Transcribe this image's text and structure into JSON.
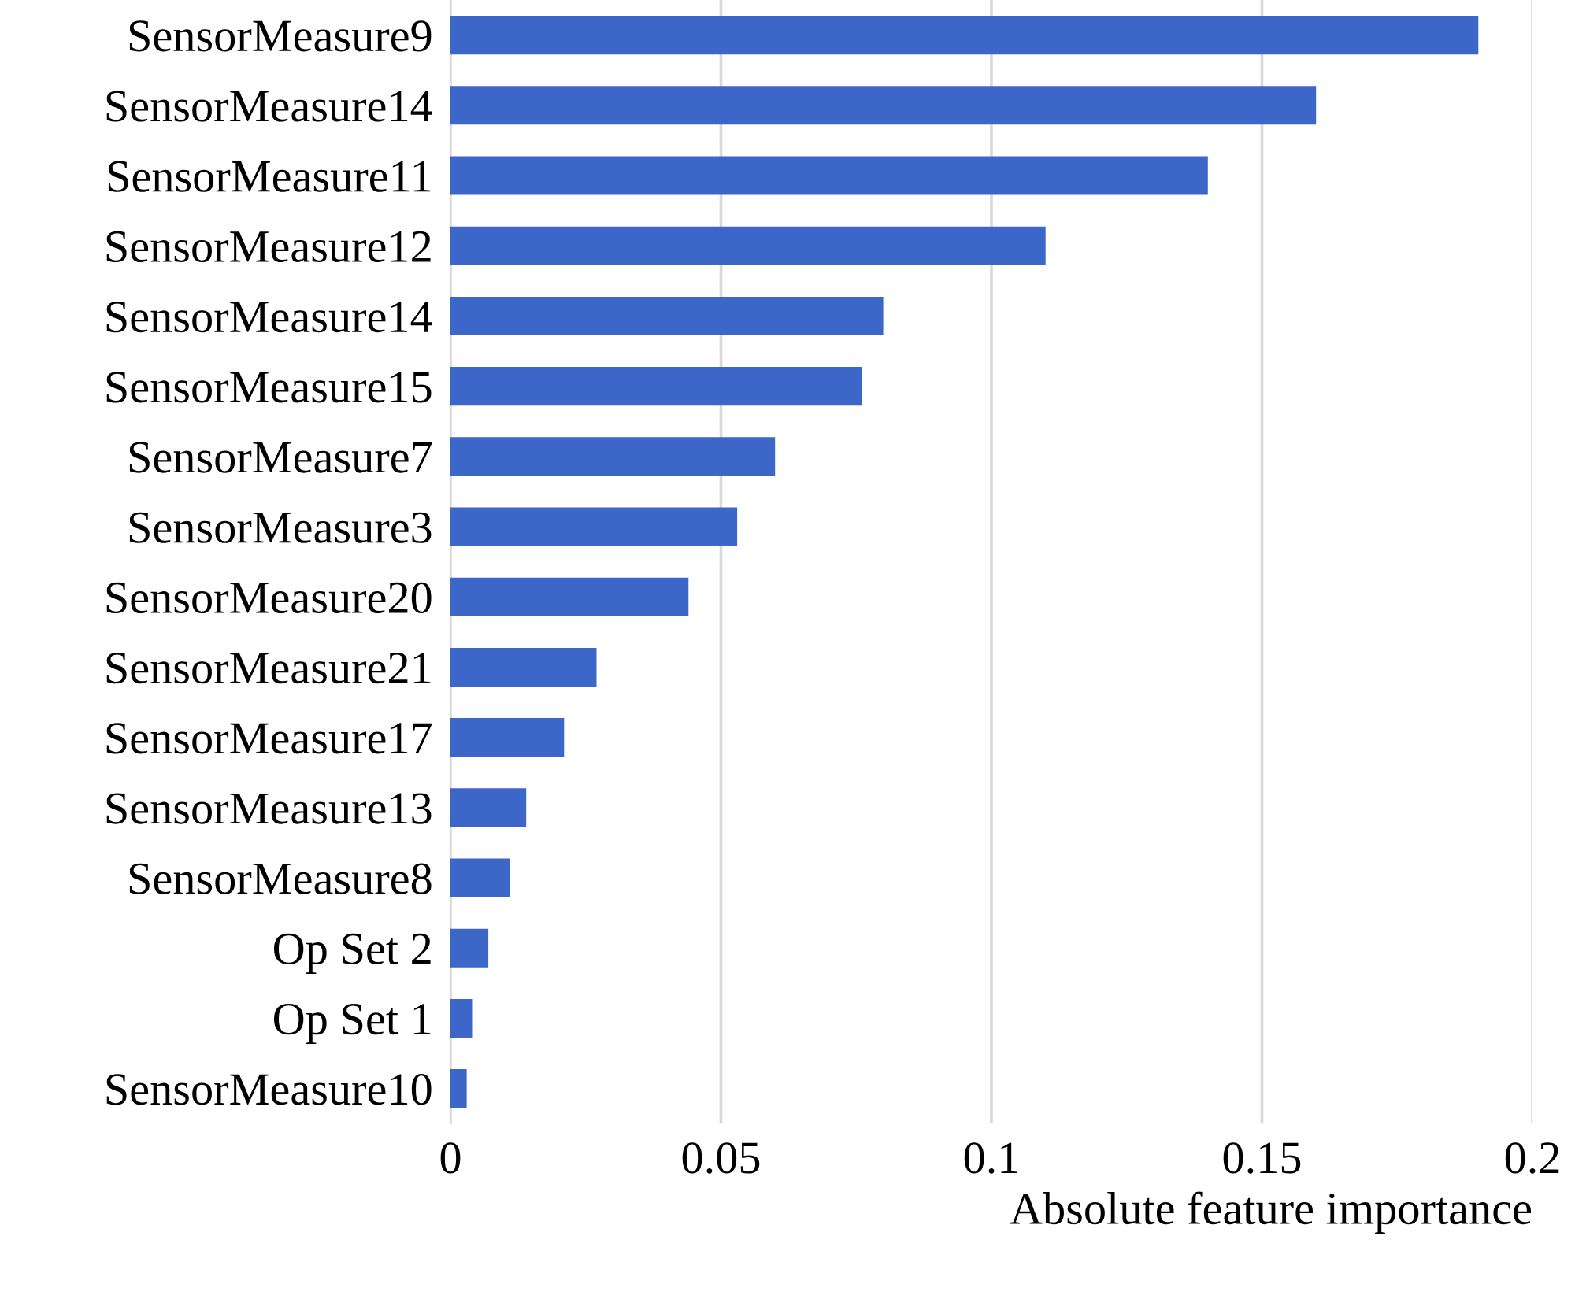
{
  "chart_data": {
    "type": "bar",
    "orientation": "horizontal",
    "xlabel": "Absolute feature importance",
    "categories": [
      "SensorMeasure9",
      "SensorMeasure14",
      "SensorMeasure11",
      "SensorMeasure12",
      "SensorMeasure14",
      "SensorMeasure15",
      "SensorMeasure7",
      "SensorMeasure3",
      "SensorMeasure20",
      "SensorMeasure21",
      "SensorMeasure17",
      "SensorMeasure13",
      "SensorMeasure8",
      "Op Set 2",
      "Op Set 1",
      "SensorMeasure10"
    ],
    "values": [
      0.19,
      0.16,
      0.14,
      0.11,
      0.08,
      0.076,
      0.06,
      0.053,
      0.044,
      0.027,
      0.021,
      0.014,
      0.011,
      0.007,
      0.004,
      0.003
    ],
    "color": "#3d66c9",
    "xlim": [
      0,
      0.2
    ],
    "xticks": [
      0,
      0.05,
      0.1,
      0.15,
      0.2
    ],
    "grid": "x"
  }
}
